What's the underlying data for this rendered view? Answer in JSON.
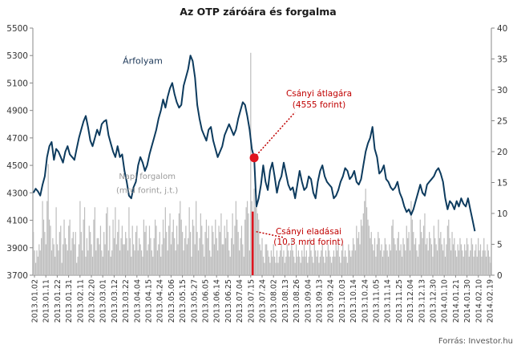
{
  "chart_data": {
    "type": "line",
    "title": "Az OTP záróára és forgalma",
    "source": "Forrás: Investor.hu",
    "y_left": {
      "ylim": [
        3700,
        5500
      ],
      "ticks": [
        3700,
        3900,
        4100,
        4300,
        4500,
        4700,
        4900,
        5100,
        5300,
        5500
      ]
    },
    "y_right": {
      "ylim": [
        0,
        40
      ],
      "ticks": [
        0,
        5,
        10,
        15,
        20,
        25,
        30,
        35,
        40
      ]
    },
    "x_ticks": [
      "2013.01.02",
      "2013.01.11",
      "2013.01.22",
      "2013.01.31",
      "2013.02.11",
      "2013.02.20",
      "2013.03.01",
      "2013.03.12",
      "2013.03.22",
      "2013.04.04",
      "2013.04.15",
      "2013.04.24",
      "2013.05.06",
      "2013.05.15",
      "2013.05.27",
      "2013.06.05",
      "2013.06.14",
      "2013.06.25",
      "2013.07.04",
      "2013.07.15",
      "2013.07.24",
      "2013.08.02",
      "2013.08.13",
      "2013.08.26",
      "2013.09.04",
      "2013.09.13",
      "2013.09.24",
      "2013.10.03",
      "2013.10.14",
      "2013.10.24",
      "2013.11.05",
      "2013.11.14",
      "2013.11.25",
      "2013.12.04",
      "2013.12.13",
      "2013.12.30",
      "2014.01.10",
      "2014.01.21",
      "2014.01.30",
      "2014.02.10",
      "2014.02.19"
    ],
    "series": [
      {
        "name": "Árfolyam",
        "axis": "left",
        "kind": "line",
        "color": "#0d3b5e",
        "points": [
          [
            0,
            4300
          ],
          [
            2,
            4330
          ],
          [
            4,
            4310
          ],
          [
            6,
            4280
          ],
          [
            8,
            4360
          ],
          [
            10,
            4420
          ],
          [
            12,
            4560
          ],
          [
            14,
            4640
          ],
          [
            16,
            4670
          ],
          [
            18,
            4540
          ],
          [
            20,
            4620
          ],
          [
            22,
            4600
          ],
          [
            24,
            4560
          ],
          [
            26,
            4520
          ],
          [
            28,
            4600
          ],
          [
            30,
            4640
          ],
          [
            32,
            4580
          ],
          [
            34,
            4560
          ],
          [
            36,
            4540
          ],
          [
            38,
            4620
          ],
          [
            40,
            4700
          ],
          [
            42,
            4760
          ],
          [
            44,
            4820
          ],
          [
            46,
            4860
          ],
          [
            48,
            4780
          ],
          [
            50,
            4680
          ],
          [
            52,
            4640
          ],
          [
            54,
            4700
          ],
          [
            56,
            4760
          ],
          [
            58,
            4720
          ],
          [
            60,
            4800
          ],
          [
            62,
            4820
          ],
          [
            64,
            4830
          ],
          [
            66,
            4720
          ],
          [
            68,
            4660
          ],
          [
            70,
            4600
          ],
          [
            72,
            4560
          ],
          [
            74,
            4640
          ],
          [
            76,
            4560
          ],
          [
            78,
            4580
          ],
          [
            80,
            4460
          ],
          [
            82,
            4380
          ],
          [
            84,
            4280
          ],
          [
            86,
            4260
          ],
          [
            88,
            4340
          ],
          [
            90,
            4380
          ],
          [
            92,
            4500
          ],
          [
            94,
            4560
          ],
          [
            96,
            4520
          ],
          [
            98,
            4460
          ],
          [
            100,
            4500
          ],
          [
            102,
            4580
          ],
          [
            104,
            4640
          ],
          [
            106,
            4700
          ],
          [
            108,
            4760
          ],
          [
            110,
            4840
          ],
          [
            112,
            4900
          ],
          [
            114,
            4980
          ],
          [
            116,
            4920
          ],
          [
            118,
            5000
          ],
          [
            120,
            5060
          ],
          [
            122,
            5100
          ],
          [
            124,
            5020
          ],
          [
            126,
            4960
          ],
          [
            128,
            4920
          ],
          [
            130,
            4940
          ],
          [
            132,
            5080
          ],
          [
            134,
            5140
          ],
          [
            136,
            5200
          ],
          [
            138,
            5300
          ],
          [
            140,
            5260
          ],
          [
            142,
            5140
          ],
          [
            144,
            4940
          ],
          [
            146,
            4840
          ],
          [
            148,
            4760
          ],
          [
            150,
            4720
          ],
          [
            152,
            4680
          ],
          [
            154,
            4760
          ],
          [
            156,
            4780
          ],
          [
            158,
            4680
          ],
          [
            160,
            4620
          ],
          [
            162,
            4560
          ],
          [
            164,
            4600
          ],
          [
            166,
            4640
          ],
          [
            168,
            4720
          ],
          [
            170,
            4760
          ],
          [
            172,
            4800
          ],
          [
            174,
            4760
          ],
          [
            176,
            4720
          ],
          [
            178,
            4760
          ],
          [
            180,
            4840
          ],
          [
            182,
            4900
          ],
          [
            184,
            4960
          ],
          [
            186,
            4940
          ],
          [
            188,
            4860
          ],
          [
            190,
            4760
          ],
          [
            192,
            4620
          ],
          [
            194,
            4555
          ],
          [
            196,
            4200
          ],
          [
            198,
            4260
          ],
          [
            200,
            4360
          ],
          [
            202,
            4500
          ],
          [
            204,
            4380
          ],
          [
            206,
            4320
          ],
          [
            208,
            4460
          ],
          [
            210,
            4520
          ],
          [
            212,
            4420
          ],
          [
            214,
            4300
          ],
          [
            216,
            4380
          ],
          [
            218,
            4420
          ],
          [
            220,
            4520
          ],
          [
            222,
            4440
          ],
          [
            224,
            4360
          ],
          [
            226,
            4320
          ],
          [
            228,
            4340
          ],
          [
            230,
            4260
          ],
          [
            232,
            4360
          ],
          [
            234,
            4460
          ],
          [
            236,
            4380
          ],
          [
            238,
            4320
          ],
          [
            240,
            4340
          ],
          [
            242,
            4420
          ],
          [
            244,
            4400
          ],
          [
            246,
            4300
          ],
          [
            248,
            4260
          ],
          [
            250,
            4380
          ],
          [
            252,
            4460
          ],
          [
            254,
            4500
          ],
          [
            256,
            4420
          ],
          [
            258,
            4380
          ],
          [
            260,
            4360
          ],
          [
            262,
            4340
          ],
          [
            264,
            4260
          ],
          [
            266,
            4280
          ],
          [
            268,
            4320
          ],
          [
            270,
            4380
          ],
          [
            272,
            4420
          ],
          [
            274,
            4480
          ],
          [
            276,
            4460
          ],
          [
            278,
            4400
          ],
          [
            280,
            4420
          ],
          [
            282,
            4460
          ],
          [
            284,
            4380
          ],
          [
            286,
            4360
          ],
          [
            288,
            4400
          ],
          [
            290,
            4500
          ],
          [
            292,
            4600
          ],
          [
            294,
            4660
          ],
          [
            296,
            4700
          ],
          [
            298,
            4780
          ],
          [
            300,
            4620
          ],
          [
            302,
            4560
          ],
          [
            304,
            4440
          ],
          [
            306,
            4460
          ],
          [
            308,
            4500
          ],
          [
            310,
            4400
          ],
          [
            312,
            4380
          ],
          [
            314,
            4340
          ],
          [
            316,
            4320
          ],
          [
            318,
            4340
          ],
          [
            320,
            4380
          ],
          [
            322,
            4300
          ],
          [
            324,
            4260
          ],
          [
            326,
            4200
          ],
          [
            328,
            4160
          ],
          [
            330,
            4180
          ],
          [
            332,
            4140
          ],
          [
            334,
            4180
          ],
          [
            336,
            4240
          ],
          [
            338,
            4300
          ],
          [
            340,
            4360
          ],
          [
            342,
            4300
          ],
          [
            344,
            4280
          ],
          [
            346,
            4360
          ],
          [
            348,
            4380
          ],
          [
            350,
            4400
          ],
          [
            352,
            4420
          ],
          [
            354,
            4460
          ],
          [
            356,
            4480
          ],
          [
            358,
            4440
          ],
          [
            360,
            4380
          ],
          [
            362,
            4260
          ],
          [
            364,
            4180
          ],
          [
            366,
            4240
          ],
          [
            368,
            4220
          ],
          [
            370,
            4180
          ],
          [
            372,
            4240
          ],
          [
            374,
            4200
          ],
          [
            376,
            4260
          ],
          [
            378,
            4220
          ],
          [
            380,
            4200
          ],
          [
            382,
            4260
          ],
          [
            384,
            4180
          ],
          [
            386,
            4100
          ],
          [
            388,
            4020
          ]
        ]
      }
    ],
    "volume": {
      "axis": "right",
      "color": "#bdbdbd",
      "highlight_color": "#e0141e",
      "highlight_index": 193,
      "highlight_value": 10.3,
      "values": [
        7,
        4,
        2,
        4,
        3,
        5,
        4,
        6,
        12,
        9,
        7,
        5,
        12,
        18,
        9,
        8,
        4,
        6,
        5,
        3,
        11,
        5,
        4,
        7,
        8,
        2,
        5,
        9,
        6,
        5,
        4,
        8,
        9,
        4,
        6,
        7,
        5,
        7,
        2,
        3,
        5,
        12,
        7,
        4,
        9,
        11,
        3,
        6,
        4,
        8,
        7,
        5,
        3,
        9,
        11,
        4,
        6,
        6,
        5,
        8,
        4,
        3,
        7,
        5,
        10,
        11,
        4,
        8,
        3,
        4,
        9,
        6,
        11,
        5,
        7,
        9,
        4,
        6,
        8,
        5,
        5,
        7,
        6,
        4,
        11,
        6,
        3,
        8,
        5,
        4,
        7,
        8,
        4,
        6,
        5,
        4,
        3,
        9,
        7,
        8,
        4,
        5,
        8,
        6,
        4,
        3,
        6,
        9,
        8,
        4,
        5,
        7,
        3,
        5,
        9,
        6,
        11,
        7,
        4,
        8,
        10,
        5,
        7,
        9,
        6,
        4,
        8,
        5,
        10,
        12,
        9,
        7,
        4,
        6,
        8,
        5,
        6,
        11,
        7,
        3,
        9,
        8,
        5,
        12,
        7,
        4,
        6,
        10,
        8,
        5,
        3,
        7,
        9,
        6,
        8,
        4,
        3,
        8,
        7,
        5,
        9,
        6,
        4,
        8,
        7,
        10,
        5,
        5,
        8,
        6,
        9,
        7,
        4,
        3,
        6,
        10,
        5,
        8,
        12,
        9,
        7,
        4,
        6,
        8,
        5,
        3,
        9,
        11,
        12,
        10,
        4,
        36,
        12,
        10.3,
        14,
        11,
        13,
        10,
        9,
        5,
        4,
        6,
        3,
        2,
        5,
        5,
        4,
        3,
        2,
        4,
        3,
        5,
        3,
        2,
        4,
        2,
        3,
        4,
        5,
        3,
        4,
        2,
        3,
        5,
        4,
        3,
        4,
        6,
        4,
        3,
        2,
        5,
        3,
        4,
        3,
        2,
        4,
        3,
        5,
        3,
        4,
        2,
        3,
        6,
        4,
        3,
        2,
        5,
        4,
        3,
        4,
        2,
        3,
        4,
        5,
        3,
        2,
        4,
        3,
        5,
        4,
        3,
        2,
        3,
        4,
        3,
        5,
        4,
        6,
        3,
        2,
        4,
        5,
        3,
        4,
        3,
        2,
        5,
        4,
        3,
        4,
        6,
        5,
        4,
        8,
        6,
        7,
        5,
        9,
        8,
        10,
        12,
        14,
        11,
        9,
        8,
        6,
        7,
        5,
        4,
        6,
        3,
        5,
        7,
        6,
        4,
        5,
        3,
        4,
        6,
        5,
        4,
        3,
        5,
        4,
        8,
        9,
        6,
        5,
        4,
        6,
        7,
        4,
        5,
        3,
        6,
        5,
        4,
        8,
        6,
        7,
        4,
        12,
        9,
        7,
        5,
        6,
        4,
        3,
        5,
        9,
        7,
        6,
        8,
        10,
        5,
        6,
        4,
        7,
        6,
        5,
        3,
        8,
        6,
        5,
        4,
        9,
        6,
        7,
        5,
        4,
        6,
        3,
        5,
        8,
        9,
        6,
        4,
        7,
        5,
        6,
        4,
        3,
        5,
        4,
        6,
        5,
        4,
        3,
        5,
        4,
        6,
        5,
        3,
        4,
        6,
        5,
        3,
        4,
        5,
        3,
        6,
        4,
        5,
        3,
        4,
        6,
        4,
        3,
        5,
        4,
        3,
        2
      ]
    },
    "annotations": [
      {
        "text": "Árfolyam",
        "kind": "label",
        "anchor_index": 96,
        "anchor_value": 5240
      },
      {
        "text": "Napi forgalom",
        "kind": "label",
        "anchor_index": 100,
        "anchor_value": 4400
      },
      {
        "text": "(mrd forint, j.t.)",
        "kind": "label",
        "anchor_index": 100,
        "anchor_value": 4300
      },
      {
        "line1": "Csányi átlagára",
        "line2": "(4555 forint)",
        "kind": "callout",
        "color": "#c00000",
        "point_index": 194,
        "point_value": 4555
      },
      {
        "line1": "Csányi eladásai",
        "line2": "(10,3 mrd forint)",
        "kind": "callout",
        "color": "#c00000",
        "point_index": 193,
        "point_value": 10.3
      }
    ]
  }
}
